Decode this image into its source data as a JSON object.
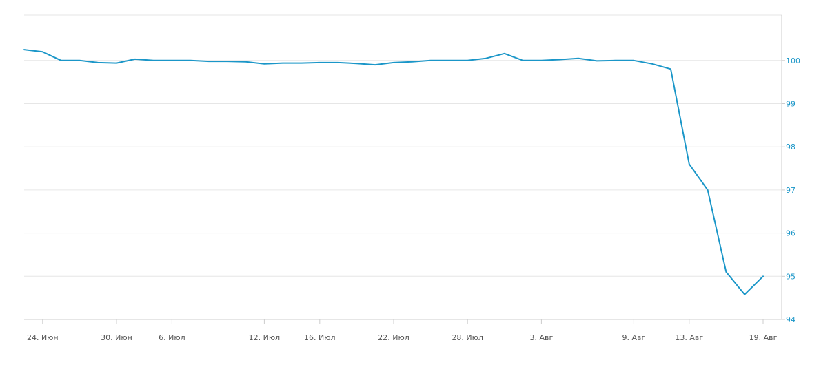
{
  "chart_data": {
    "type": "line",
    "title": "",
    "xlabel": "",
    "ylabel": "",
    "ylim": [
      94,
      101
    ],
    "y_ticks": [
      "94",
      "95",
      "96",
      "97",
      "98",
      "99",
      "100"
    ],
    "x_tick_labels": [
      "24. Июн",
      "30. Июн",
      "6. Июл",
      "12. Июл",
      "16. Июл",
      "22. Июл",
      "28. Июл",
      "3. Авг",
      "9. Авг",
      "13. Авг",
      "19. Авг"
    ],
    "x_tick_index": [
      1,
      5,
      8,
      13,
      16,
      20,
      24,
      28,
      33,
      36,
      40
    ],
    "grid": true,
    "legend": "none",
    "y_axis_side": "right",
    "line_color": "#1a96c8",
    "axis_label_color": "#1a96c8",
    "series": [
      {
        "values": [
          100.25,
          100.2,
          100.0,
          100.0,
          99.95,
          99.94,
          100.03,
          100.0,
          100.0,
          100.0,
          99.98,
          99.98,
          99.97,
          99.92,
          99.94,
          99.94,
          99.95,
          99.95,
          99.93,
          99.9,
          99.95,
          99.97,
          100.0,
          100.0,
          100.0,
          100.05,
          100.16,
          100.0,
          100.0,
          100.02,
          100.05,
          99.99,
          100.0,
          100.0,
          99.92,
          99.8,
          97.6,
          97.0,
          95.1,
          94.58,
          95.0
        ]
      }
    ]
  }
}
